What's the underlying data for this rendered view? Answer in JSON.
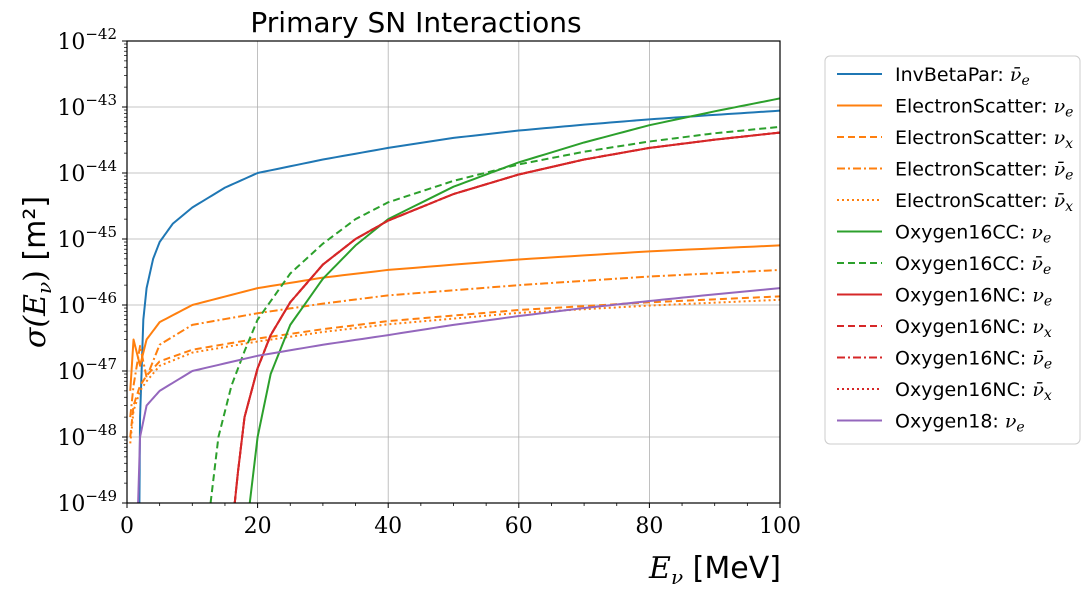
{
  "chart_data": {
    "type": "line",
    "title": "Primary SN Interactions",
    "xlabel": "E_ν [MeV]",
    "ylabel": "σ(E_ν) [m²]",
    "xlim": [
      0,
      100
    ],
    "ylim": [
      1e-49,
      1e-42
    ],
    "yscale": "log",
    "grid": true,
    "legend_position": "outside-right",
    "x_ticks": [
      "0",
      "20",
      "40",
      "60",
      "80",
      "100"
    ],
    "y_ticks": [
      "10−49",
      "10−48",
      "10−47",
      "10−46",
      "10−45",
      "10−44",
      "10−43",
      "10−42"
    ],
    "series": [
      {
        "name": "InvBetaPar: ν̄e",
        "color": "#1f77b4",
        "dash": "solid",
        "x": [
          1.9,
          2,
          2.5,
          3,
          4,
          5,
          7,
          10,
          15,
          20,
          30,
          40,
          50,
          60,
          70,
          80,
          90,
          100
        ],
        "y": [
          1e-49,
          2e-48,
          6e-47,
          1.8e-46,
          5e-46,
          9e-46,
          1.7e-45,
          3e-45,
          6e-45,
          1e-44,
          1.6e-44,
          2.4e-44,
          3.4e-44,
          4.4e-44,
          5.4e-44,
          6.5e-44,
          7.6e-44,
          8.8e-44
        ]
      },
      {
        "name": "ElectronScatter: νe",
        "color": "#ff7f0e",
        "dash": "solid",
        "x": [
          0.5,
          1,
          2,
          3,
          5,
          10,
          20,
          30,
          40,
          60,
          80,
          100
        ],
        "y": [
          5e-48,
          3e-47,
          1.2e-47,
          3e-47,
          5.5e-47,
          1e-46,
          1.8e-46,
          2.6e-46,
          3.4e-46,
          4.9e-46,
          6.5e-46,
          8e-46
        ]
      },
      {
        "name": "ElectronScatter: νx",
        "color": "#ff7f0e",
        "dash": "dashed",
        "x": [
          0.5,
          1,
          2,
          3,
          5,
          10,
          20,
          30,
          40,
          60,
          80,
          100
        ],
        "y": [
          1e-48,
          3e-48,
          6e-48,
          8.5e-48,
          1.4e-47,
          2.1e-47,
          3.1e-47,
          4.3e-47,
          5.7e-47,
          8.4e-47,
          1.1e-46,
          1.35e-46
        ]
      },
      {
        "name": "ElectronScatter: ν̄e",
        "color": "#ff7f0e",
        "dash": "dashdot",
        "x": [
          0.5,
          1,
          2,
          3,
          5,
          10,
          20,
          30,
          40,
          60,
          80,
          100
        ],
        "y": [
          2e-48,
          6e-48,
          2.4e-47,
          8e-48,
          2.5e-47,
          5e-47,
          7.5e-47,
          1.05e-46,
          1.4e-46,
          2e-46,
          2.7e-46,
          3.4e-46
        ]
      },
      {
        "name": "ElectronScatter: ν̄x",
        "color": "#ff7f0e",
        "dash": "dotted",
        "x": [
          0.5,
          1,
          2,
          3,
          5,
          10,
          20,
          30,
          40,
          60,
          80,
          100
        ],
        "y": [
          8e-49,
          2.5e-48,
          5e-48,
          7e-48,
          1.2e-47,
          1.9e-47,
          2.8e-47,
          3.9e-47,
          5.1e-47,
          7.6e-47,
          9.8e-47,
          1.2e-46
        ]
      },
      {
        "name": "Oxygen16CC: νe",
        "color": "#2ca02c",
        "dash": "solid",
        "x": [
          18.8,
          20,
          22,
          25,
          30,
          35,
          40,
          50,
          60,
          70,
          80,
          90,
          100
        ],
        "y": [
          1e-49,
          1e-48,
          9e-48,
          5e-47,
          2.5e-46,
          8e-46,
          2e-45,
          6.2e-45,
          1.45e-44,
          2.9e-44,
          5.3e-44,
          8.6e-44,
          1.35e-43
        ]
      },
      {
        "name": "Oxygen16CC: ν̄e",
        "color": "#2ca02c",
        "dash": "dashed",
        "x": [
          12.8,
          14,
          16,
          18,
          20,
          25,
          30,
          35,
          40,
          50,
          60,
          70,
          80,
          90,
          100
        ],
        "y": [
          1e-49,
          1e-48,
          6e-48,
          2e-47,
          6e-47,
          3e-46,
          8.5e-46,
          2e-45,
          3.6e-45,
          7.6e-45,
          1.35e-44,
          2.1e-44,
          3e-44,
          4e-44,
          5e-44
        ]
      },
      {
        "name": "Oxygen16NC: νe",
        "color": "#d62728",
        "dash": "solid",
        "x": [
          16.5,
          17,
          18,
          20,
          22,
          25,
          30,
          35,
          40,
          50,
          60,
          70,
          80,
          90,
          100
        ],
        "y": [
          1e-49,
          3e-49,
          2e-48,
          1.1e-47,
          3.5e-47,
          1.1e-46,
          4.1e-46,
          1e-45,
          1.9e-45,
          4.8e-45,
          9.5e-45,
          1.6e-44,
          2.4e-44,
          3.2e-44,
          4.1e-44
        ]
      },
      {
        "name": "Oxygen16NC: νx",
        "color": "#d62728",
        "dash": "dashed",
        "x": [
          16.5,
          17,
          18,
          20,
          22,
          25,
          30,
          35,
          40,
          50,
          60,
          70,
          80,
          90,
          100
        ],
        "y": [
          1e-49,
          3e-49,
          2e-48,
          1.1e-47,
          3.5e-47,
          1.1e-46,
          4.1e-46,
          1e-45,
          1.9e-45,
          4.8e-45,
          9.5e-45,
          1.6e-44,
          2.4e-44,
          3.2e-44,
          4.1e-44
        ]
      },
      {
        "name": "Oxygen16NC: ν̄e",
        "color": "#d62728",
        "dash": "dashdot",
        "x": [
          16.5,
          17,
          18,
          20,
          22,
          25,
          30,
          35,
          40,
          50,
          60,
          70,
          80,
          90,
          100
        ],
        "y": [
          1e-49,
          3e-49,
          2e-48,
          1.1e-47,
          3.5e-47,
          1.1e-46,
          4.1e-46,
          1e-45,
          1.9e-45,
          4.8e-45,
          9.5e-45,
          1.6e-44,
          2.4e-44,
          3.2e-44,
          4.1e-44
        ]
      },
      {
        "name": "Oxygen16NC: ν̄x",
        "color": "#d62728",
        "dash": "dotted",
        "x": [
          16.5,
          17,
          18,
          20,
          22,
          25,
          30,
          35,
          40,
          50,
          60,
          70,
          80,
          90,
          100
        ],
        "y": [
          1e-49,
          3e-49,
          2e-48,
          1.1e-47,
          3.5e-47,
          1.1e-46,
          4.1e-46,
          1e-45,
          1.9e-45,
          4.8e-45,
          9.5e-45,
          1.6e-44,
          2.4e-44,
          3.2e-44,
          4.1e-44
        ]
      },
      {
        "name": "Oxygen18: νe",
        "color": "#9467bd",
        "dash": "solid",
        "x": [
          1.7,
          2,
          3,
          5,
          10,
          20,
          30,
          40,
          50,
          60,
          70,
          80,
          90,
          100
        ],
        "y": [
          1e-49,
          1e-48,
          3e-48,
          5e-48,
          1e-47,
          1.7e-47,
          2.5e-47,
          3.5e-47,
          5e-47,
          6.8e-47,
          9e-47,
          1.15e-46,
          1.45e-46,
          1.8e-46
        ]
      }
    ]
  }
}
